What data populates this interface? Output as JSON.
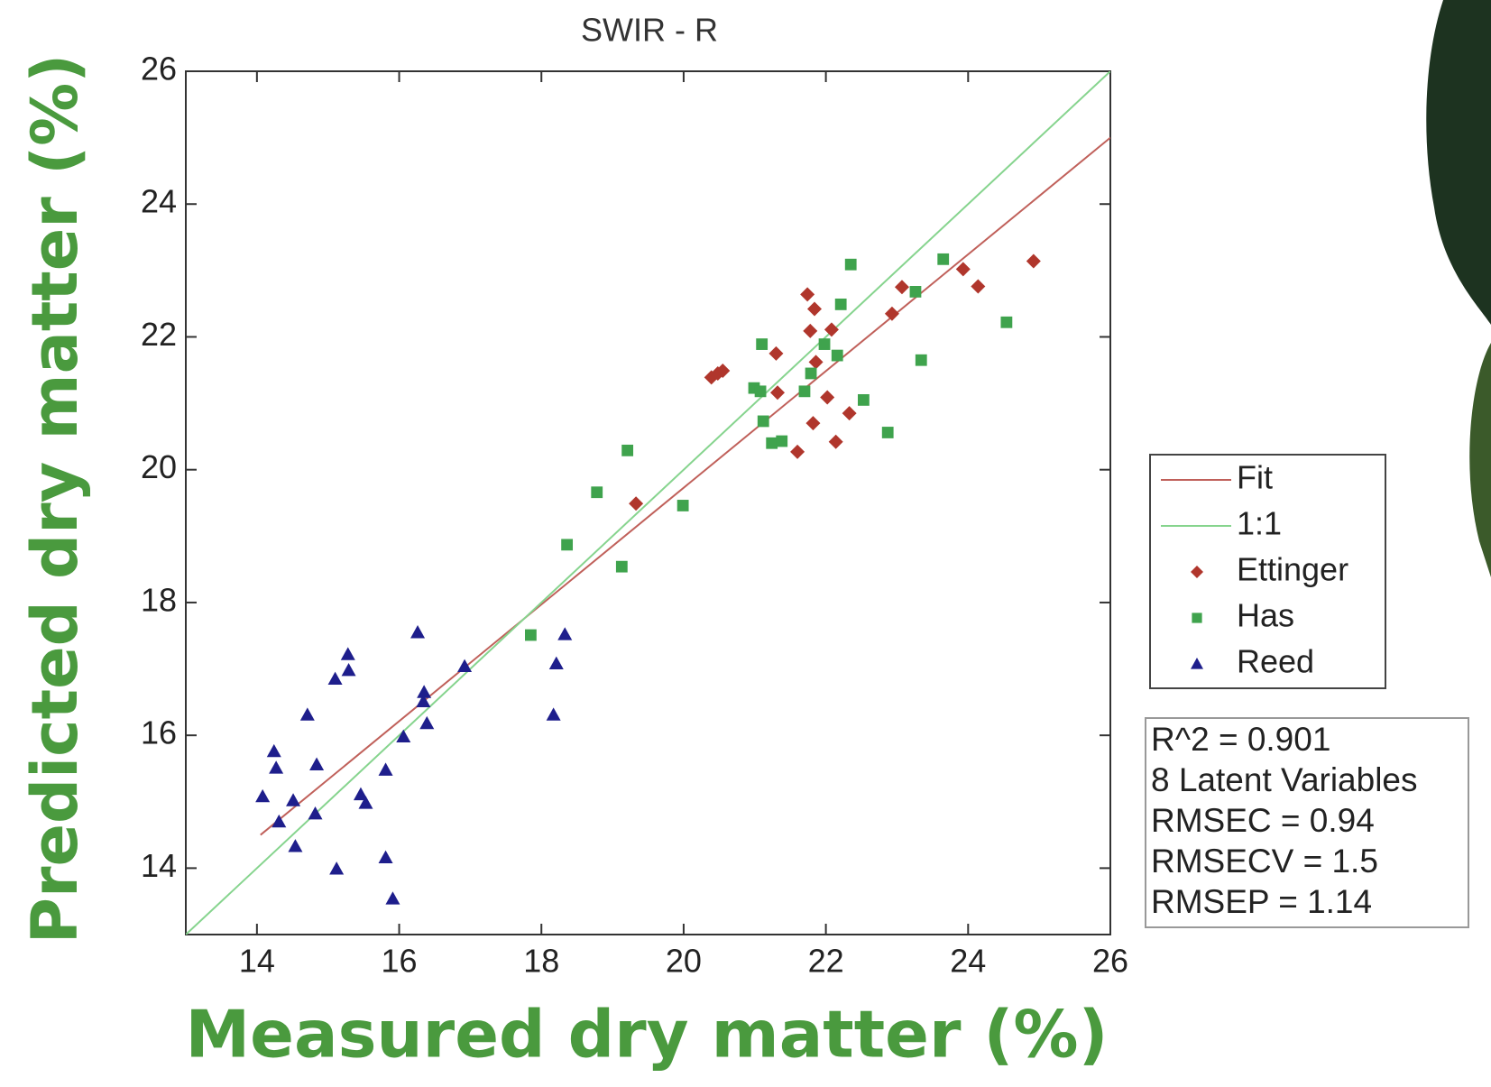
{
  "chart_data": {
    "type": "scatter",
    "title": "SWIR - R",
    "x_label": "Measured dry matter (%)",
    "y_label": "Predicted dry matter (%)",
    "xlim": [
      13,
      26
    ],
    "ylim": [
      13,
      26
    ],
    "xticks": [
      14,
      16,
      18,
      20,
      22,
      24,
      26
    ],
    "yticks": [
      14,
      16,
      18,
      20,
      22,
      24,
      26
    ],
    "grid": false,
    "legend": "outside right",
    "series": [
      {
        "name": "Fit",
        "style": "line",
        "color": "#c0605a",
        "x": [
          14.05,
          26
        ],
        "values": [
          14.5,
          25.0
        ]
      },
      {
        "name": "1:1",
        "style": "line",
        "color": "#86d48e",
        "x": [
          13,
          26
        ],
        "values": [
          13,
          26
        ]
      },
      {
        "name": "Ettinger",
        "style": "diamond",
        "color": "#b0362c",
        "x": [
          24.92,
          23.93,
          24.14,
          23.07,
          21.74,
          21.84,
          22.93,
          21.3,
          21.78,
          22.08,
          21.86,
          20.39,
          20.48,
          20.55,
          21.32,
          22.02,
          21.82,
          22.33,
          22.14,
          21.6,
          19.33
        ],
        "values": [
          23.14,
          23.02,
          22.76,
          22.75,
          22.64,
          22.42,
          22.35,
          21.75,
          22.09,
          22.11,
          21.62,
          21.39,
          21.45,
          21.49,
          21.16,
          21.09,
          20.7,
          20.85,
          20.42,
          20.27,
          19.49
        ]
      },
      {
        "name": "Has",
        "style": "square",
        "color": "#3fa34d",
        "x": [
          22.35,
          23.65,
          23.26,
          24.54,
          22.21,
          21.1,
          21.98,
          22.16,
          23.34,
          21.79,
          20.99,
          21.08,
          21.7,
          22.53,
          21.12,
          21.24,
          21.38,
          22.87,
          19.21,
          18.78,
          19.99,
          18.36,
          19.13,
          17.85
        ],
        "values": [
          23.09,
          23.17,
          22.68,
          22.22,
          22.49,
          21.89,
          21.89,
          21.72,
          21.65,
          21.45,
          21.23,
          21.18,
          21.18,
          21.05,
          20.73,
          20.4,
          20.43,
          20.56,
          20.29,
          19.66,
          19.46,
          18.87,
          18.54,
          17.51
        ]
      },
      {
        "name": "Reed",
        "style": "triangle",
        "color": "#1e1e8c",
        "x": [
          16.26,
          18.33,
          15.28,
          15.29,
          15.1,
          16.92,
          18.21,
          16.35,
          16.34,
          14.71,
          18.17,
          16.39,
          16.06,
          14.24,
          14.27,
          14.84,
          15.81,
          15.46,
          15.53,
          14.51,
          14.08,
          14.82,
          14.31,
          14.54,
          15.81,
          15.12,
          15.91
        ],
        "values": [
          17.55,
          17.52,
          17.22,
          16.98,
          16.85,
          17.04,
          17.08,
          16.65,
          16.51,
          16.31,
          16.31,
          16.18,
          15.98,
          15.76,
          15.51,
          15.56,
          15.48,
          15.11,
          14.98,
          15.02,
          15.08,
          14.82,
          14.7,
          14.33,
          14.16,
          13.99,
          13.54
        ]
      }
    ],
    "annotations": [
      "R^2 = 0.901",
      "8 Latent Variables",
      "RMSEC = 0.94",
      "RMSECV = 1.5",
      "RMSEP = 1.14"
    ]
  }
}
